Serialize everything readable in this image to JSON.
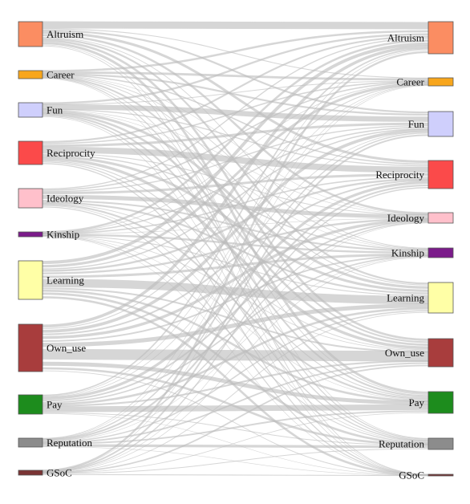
{
  "diagram": {
    "type": "sankey",
    "link_color": "#bdbdbd",
    "categories": [
      {
        "name": "Altruism",
        "color": "#fb8d62"
      },
      {
        "name": "Career",
        "color": "#f8a61c"
      },
      {
        "name": "Fun",
        "color": "#cfcffc"
      },
      {
        "name": "Reciprocity",
        "color": "#fb4a4a"
      },
      {
        "name": "Ideology",
        "color": "#ffc0cb"
      },
      {
        "name": "Kinship",
        "color": "#7b1b8a"
      },
      {
        "name": "Learning",
        "color": "#ffffa6"
      },
      {
        "name": "Own_use",
        "color": "#a83d3d"
      },
      {
        "name": "Pay",
        "color": "#1d8c1d"
      },
      {
        "name": "Reputation",
        "color": "#8c8c8c"
      },
      {
        "name": "GSoC",
        "color": "#7a3434"
      }
    ],
    "left_values": [
      42,
      10,
      20,
      34,
      28,
      7,
      56,
      68,
      27,
      13,
      6
    ],
    "right_values": [
      47,
      11,
      36,
      40,
      14,
      12,
      45,
      40,
      31,
      16,
      2
    ]
  }
}
